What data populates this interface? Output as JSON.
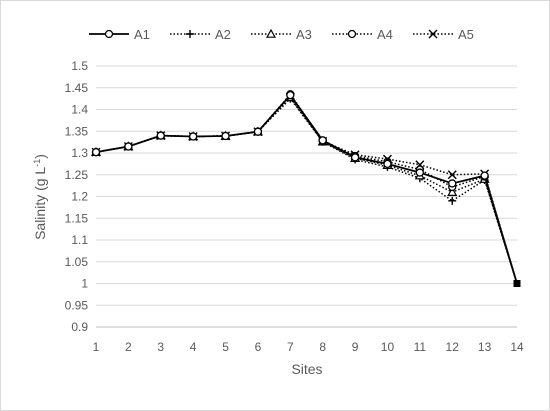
{
  "chart_data": {
    "type": "line",
    "title": "",
    "xlabel": "Sites",
    "ylabel_main": "Salinity (g L",
    "ylabel_sup": "-1",
    "ylabel_close": ")",
    "categories": [
      "1",
      "2",
      "3",
      "4",
      "5",
      "6",
      "7",
      "8",
      "9",
      "10",
      "11",
      "12",
      "13",
      "14"
    ],
    "ylim": [
      0.9,
      1.5
    ],
    "yticks": [
      "0.9",
      "0.95",
      "1",
      "1.05",
      "1.1",
      "1.15",
      "1.2",
      "1.25",
      "1.3",
      "1.35",
      "1.4",
      "1.45",
      "1.5"
    ],
    "grid": "horizontal",
    "legend_position": "top",
    "series": [
      {
        "name": "A1",
        "marker": "circle",
        "line": "solid",
        "values": [
          1.302,
          1.315,
          1.34,
          1.338,
          1.339,
          1.349,
          1.433,
          1.329,
          1.29,
          1.275,
          1.255,
          1.23,
          1.248,
          1.0
        ]
      },
      {
        "name": "A2",
        "marker": "plus",
        "line": "dotted",
        "values": [
          1.302,
          1.315,
          1.34,
          1.338,
          1.339,
          1.349,
          1.425,
          1.326,
          1.285,
          1.268,
          1.242,
          1.19,
          1.238,
          1.0
        ]
      },
      {
        "name": "A3",
        "marker": "triangle",
        "line": "dotted",
        "values": [
          1.302,
          1.315,
          1.34,
          1.338,
          1.339,
          1.349,
          1.428,
          1.326,
          1.288,
          1.272,
          1.248,
          1.21,
          1.24,
          1.0
        ]
      },
      {
        "name": "A4",
        "marker": "circle",
        "line": "dotted",
        "values": [
          1.302,
          1.315,
          1.34,
          1.338,
          1.339,
          1.349,
          1.435,
          1.329,
          1.293,
          1.28,
          1.262,
          1.222,
          1.246,
          1.0
        ]
      },
      {
        "name": "A5",
        "marker": "x",
        "line": "dotted",
        "values": [
          1.302,
          1.315,
          1.34,
          1.338,
          1.339,
          1.349,
          1.429,
          1.327,
          1.296,
          1.286,
          1.273,
          1.25,
          1.252,
          1.0
        ]
      }
    ],
    "colors": {
      "series": "#000000",
      "grid": "#d9d9d9",
      "axis": "#bfbfbf",
      "text": "#595959"
    }
  }
}
